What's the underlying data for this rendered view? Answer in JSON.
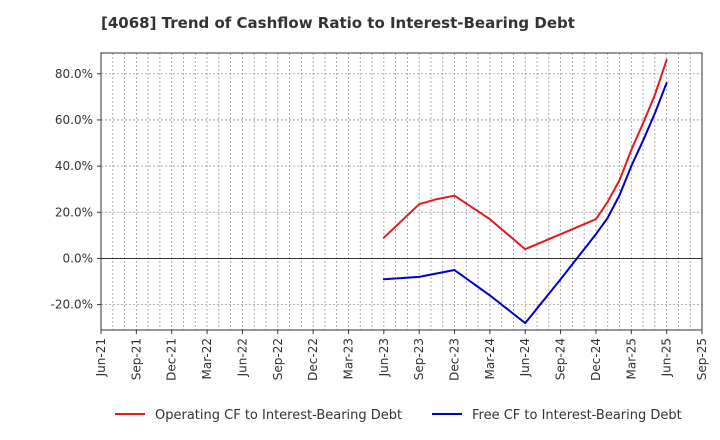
{
  "chart_data": {
    "type": "line",
    "title": "[4068]  Trend of Cashflow Ratio to Interest-Bearing Debt",
    "xlabel": "",
    "ylabel": "",
    "categories": [
      "Jun-21",
      "Sep-21",
      "Dec-21",
      "Mar-22",
      "Jun-22",
      "Sep-22",
      "Dec-22",
      "Mar-23",
      "Jun-23",
      "Sep-23",
      "Dec-23",
      "Mar-24",
      "Jun-24",
      "Sep-24",
      "Dec-24",
      "Mar-25",
      "Jun-25",
      "Sep-25"
    ],
    "ylim": [
      -31,
      89
    ],
    "yticks": [
      -20,
      0,
      20,
      40,
      60,
      80
    ],
    "ytick_labels": [
      "-20.0%",
      "0.0%",
      "20.0%",
      "40.0%",
      "60.0%",
      "80.0%"
    ],
    "grid": true,
    "legend_position": "bottom",
    "series": [
      {
        "name": "Operating CF to Interest-Bearing Debt",
        "color": "#e41a1c",
        "points": [
          {
            "x": 8,
            "y": 9.0
          },
          {
            "x": 9,
            "y": 23.5
          },
          {
            "x": 9.5,
            "y": 25.7
          },
          {
            "x": 10,
            "y": 27.2
          },
          {
            "x": 11,
            "y": 17.0
          },
          {
            "x": 12,
            "y": 4.0
          },
          {
            "x": 13,
            "y": 10.5
          },
          {
            "x": 14,
            "y": 17.0
          },
          {
            "x": 14.33,
            "y": 24.5
          },
          {
            "x": 14.67,
            "y": 34.0
          },
          {
            "x": 15,
            "y": 47.0
          },
          {
            "x": 15.33,
            "y": 58.5
          },
          {
            "x": 15.67,
            "y": 71.0
          },
          {
            "x": 16,
            "y": 86.0
          }
        ]
      },
      {
        "name": "Free CF to Interest-Bearing Debt",
        "color": "#0000cc",
        "points": [
          {
            "x": 8,
            "y": -9.0
          },
          {
            "x": 9,
            "y": -8.0
          },
          {
            "x": 10,
            "y": -5.0
          },
          {
            "x": 11,
            "y": -16.0
          },
          {
            "x": 12,
            "y": -28.0
          },
          {
            "x": 13,
            "y": -9.0
          },
          {
            "x": 14,
            "y": 10.5
          },
          {
            "x": 14.33,
            "y": 17.5
          },
          {
            "x": 14.67,
            "y": 27.5
          },
          {
            "x": 15,
            "y": 40.0
          },
          {
            "x": 15.33,
            "y": 51.0
          },
          {
            "x": 15.67,
            "y": 63.0
          },
          {
            "x": 16,
            "y": 76.0
          }
        ]
      }
    ]
  }
}
